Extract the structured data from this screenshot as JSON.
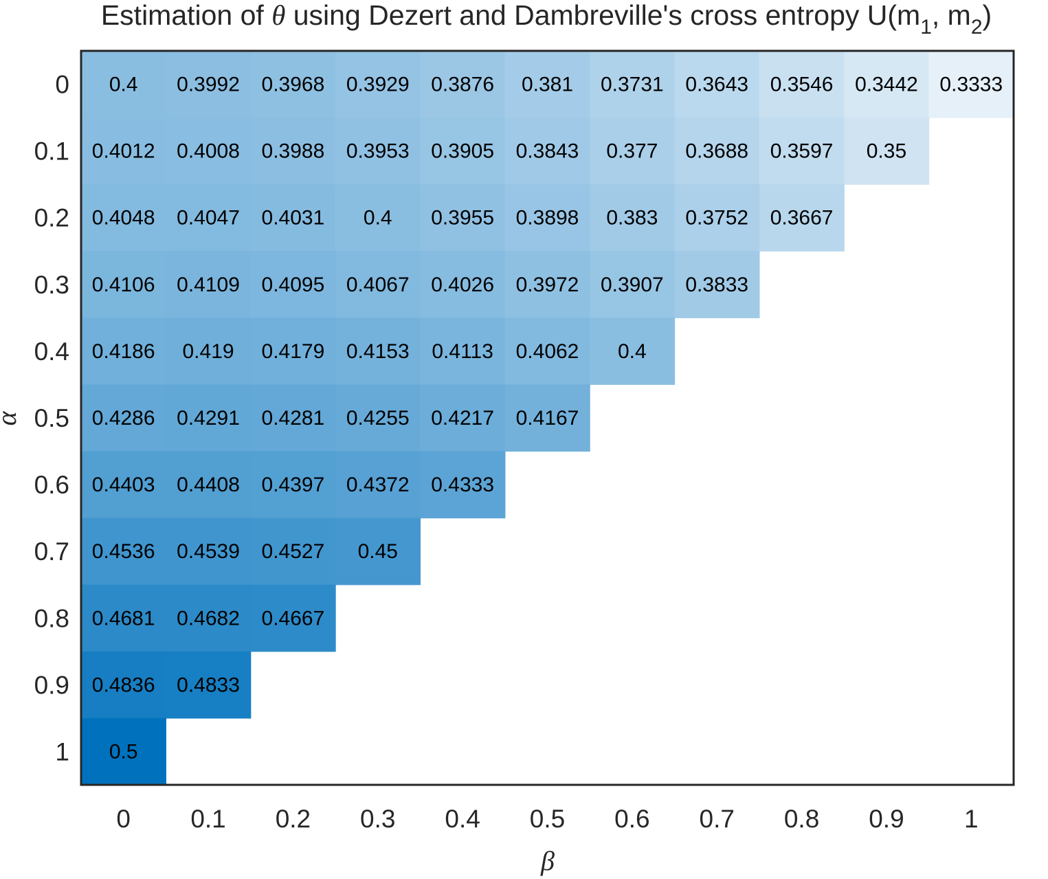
{
  "chart_data": {
    "type": "heatmap",
    "title": {
      "before": "Estimation of ",
      "symbol": "θ",
      "after": " using Dezert and Dambreville's cross entropy U(m",
      "sub1": "1",
      "mid": ", m",
      "sub2": "2",
      "end": ")"
    },
    "xlabel": "β",
    "ylabel": "α",
    "x_ticks": [
      "0",
      "0.1",
      "0.2",
      "0.3",
      "0.4",
      "0.5",
      "0.6",
      "0.7",
      "0.8",
      "0.9",
      "1"
    ],
    "y_ticks": [
      "0",
      "0.1",
      "0.2",
      "0.3",
      "0.4",
      "0.5",
      "0.6",
      "0.7",
      "0.8",
      "0.9",
      "1"
    ],
    "values": [
      [
        "0.4",
        "0.3992",
        "0.3968",
        "0.3929",
        "0.3876",
        "0.381",
        "0.3731",
        "0.3643",
        "0.3546",
        "0.3442",
        "0.3333"
      ],
      [
        "0.4012",
        "0.4008",
        "0.3988",
        "0.3953",
        "0.3905",
        "0.3843",
        "0.377",
        "0.3688",
        "0.3597",
        "0.35"
      ],
      [
        "0.4048",
        "0.4047",
        "0.4031",
        "0.4",
        "0.3955",
        "0.3898",
        "0.383",
        "0.3752",
        "0.3667"
      ],
      [
        "0.4106",
        "0.4109",
        "0.4095",
        "0.4067",
        "0.4026",
        "0.3972",
        "0.3907",
        "0.3833"
      ],
      [
        "0.4186",
        "0.419",
        "0.4179",
        "0.4153",
        "0.4113",
        "0.4062",
        "0.4"
      ],
      [
        "0.4286",
        "0.4291",
        "0.4281",
        "0.4255",
        "0.4217",
        "0.4167"
      ],
      [
        "0.4403",
        "0.4408",
        "0.4397",
        "0.4372",
        "0.4333"
      ],
      [
        "0.4536",
        "0.4539",
        "0.4527",
        "0.45"
      ],
      [
        "0.4681",
        "0.4682",
        "0.4667"
      ],
      [
        "0.4836",
        "0.4833"
      ],
      [
        "0.5"
      ]
    ],
    "color_scale": {
      "min": 0.3333,
      "max": 0.5,
      "low_color": "#e6f0f9",
      "high_color": "#0072bd"
    },
    "empty_cell_color": "#ffffff",
    "grid": false,
    "legend": "none"
  }
}
